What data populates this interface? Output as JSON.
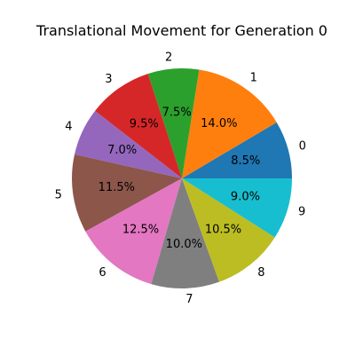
{
  "chart_data": {
    "type": "pie",
    "title": "Translational Movement for Generation 0",
    "start_angle_deg": 0,
    "direction": "counterclockwise",
    "slices": [
      {
        "label": "0",
        "value": 8.5,
        "pct_label": "8.5%",
        "color": "#1f77b4"
      },
      {
        "label": "1",
        "value": 14.0,
        "pct_label": "14.0%",
        "color": "#ff7f0e"
      },
      {
        "label": "2",
        "value": 7.5,
        "pct_label": "7.5%",
        "color": "#2ca02c"
      },
      {
        "label": "3",
        "value": 9.5,
        "pct_label": "9.5%",
        "color": "#d62728"
      },
      {
        "label": "4",
        "value": 7.0,
        "pct_label": "7.0%",
        "color": "#9467bd"
      },
      {
        "label": "5",
        "value": 11.5,
        "pct_label": "11.5%",
        "color": "#8c564b"
      },
      {
        "label": "6",
        "value": 12.5,
        "pct_label": "12.5%",
        "color": "#e377c2"
      },
      {
        "label": "7",
        "value": 10.0,
        "pct_label": "10.0%",
        "color": "#7f7f7f"
      },
      {
        "label": "8",
        "value": 10.5,
        "pct_label": "10.5%",
        "color": "#bcbd22"
      },
      {
        "label": "9",
        "value": 9.0,
        "pct_label": "9.0%",
        "color": "#17becf"
      }
    ]
  }
}
